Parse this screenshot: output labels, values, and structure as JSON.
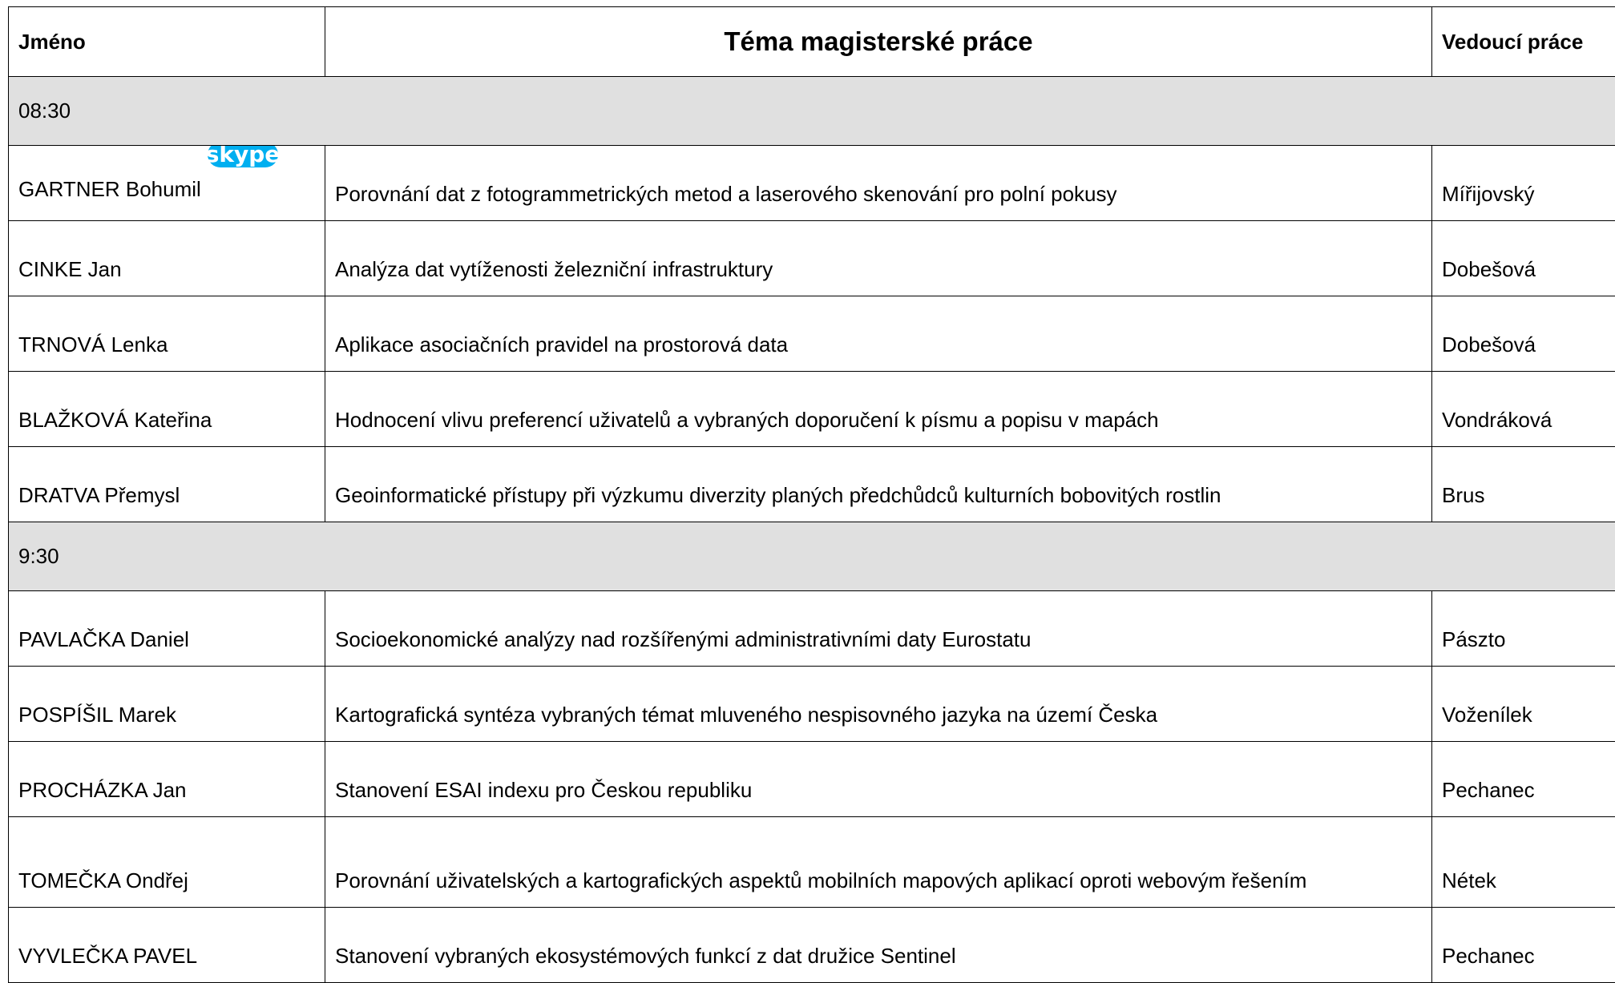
{
  "table": {
    "header": [
      "Jméno",
      "Téma magisterské práce",
      "Vedoucí práce"
    ],
    "skype_icon": "skype",
    "groups": [
      {
        "time": "08:30",
        "rows": [
          [
            "GARTNER Bohumil",
            "Porovnání dat z fotogrammetrických metod a laserového skenování pro polní pokusy",
            "Mířijovský"
          ],
          [
            "CINKE Jan",
            "Analýza dat vytíženosti železniční infrastruktury",
            "Dobešová"
          ],
          [
            "TRNOVÁ Lenka",
            "Aplikace asociačních pravidel na prostorová data",
            "Dobešová"
          ],
          [
            "BLAŽKOVÁ Kateřina",
            "Hodnocení vlivu preferencí uživatelů a vybraných doporučení k písmu a popisu v mapách",
            "Vondráková"
          ],
          [
            "DRATVA Přemysl",
            "Geoinformatické přístupy při výzkumu diverzity planých předchůdců kulturních bobovitých rostlin",
            "Brus"
          ]
        ]
      },
      {
        "time": "9:30",
        "rows": [
          [
            "PAVLAČKA Daniel",
            "Socioekonomické analýzy nad rozšířenými administrativními daty Eurostatu",
            "Pászto"
          ],
          [
            "POSPÍŠIL Marek",
            "Kartografická syntéza vybraných témat mluveného nespisovného jazyka na území Česka",
            "Voženílek"
          ],
          [
            "PROCHÁZKA Jan",
            "Stanovení ESAI indexu pro Českou republiku",
            "Pechanec"
          ],
          [
            "TOMEČKA Ondřej",
            "Porovnání uživatelských a kartografických aspektů mobilních mapových aplikací oproti webovým řešením",
            "Nétek"
          ],
          [
            "VYVLEČKA  PAVEL",
            "Stanovení vybraných ekosystémových funkcí z dat družice Sentinel",
            "Pechanec"
          ]
        ]
      }
    ]
  }
}
